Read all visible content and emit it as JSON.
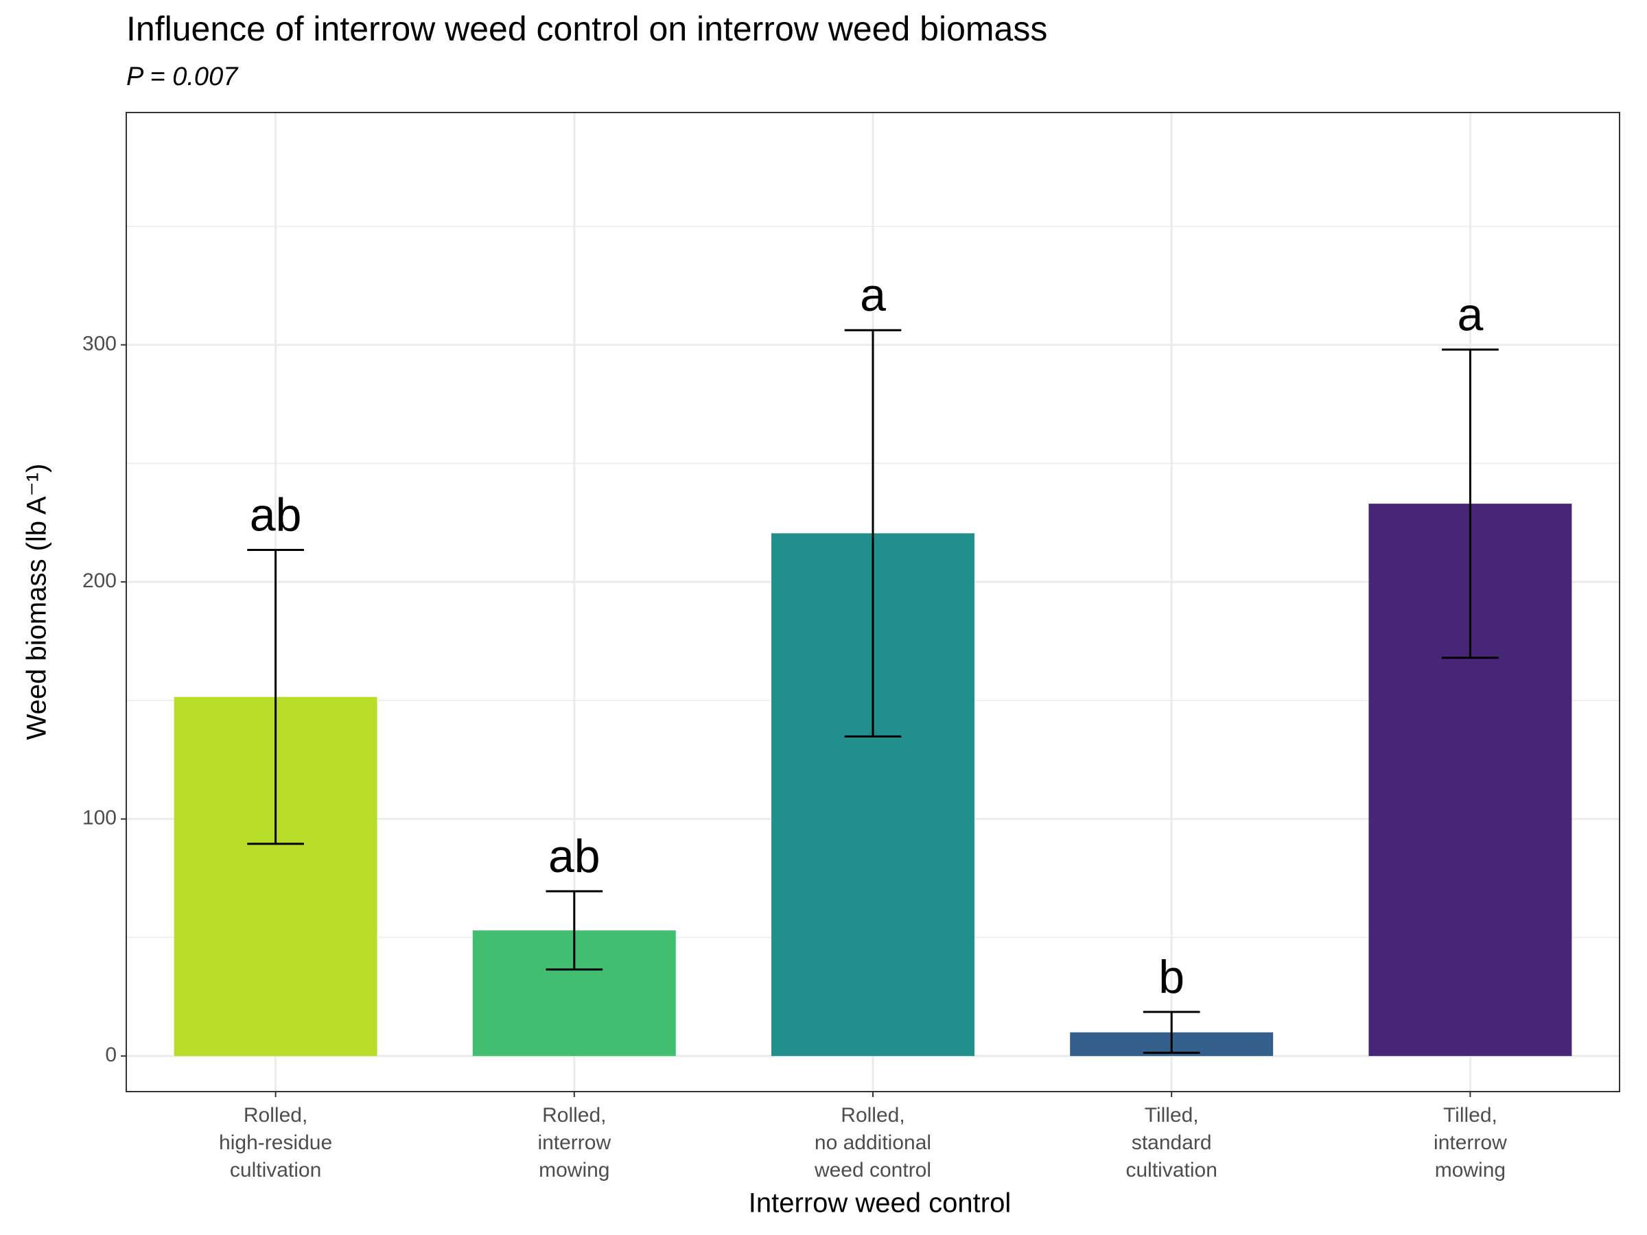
{
  "chart_data": {
    "type": "bar",
    "title": "Influence of interrow weed control on interrow weed biomass",
    "subtitle": "P = 0.007",
    "x_label": "Interrow weed control",
    "y_label": "Weed biomass (lb A⁻¹)",
    "categories": [
      "Rolled,\nhigh-residue\ncultivation",
      "Rolled,\ninterrow\nmowing",
      "Rolled,\nno additional\nweed control",
      "Tilled,\nstandard\ncultivation",
      "Tilled,\ninterrow\nmowing"
    ],
    "values": [
      151.5,
      53,
      220.5,
      10,
      233
    ],
    "errors": [
      62,
      16.5,
      85.7,
      8.6,
      65
    ],
    "colors": [
      "#b8de29",
      "#43bf71",
      "#21908d",
      "#35608d",
      "#482677"
    ],
    "annotations": [
      "ab",
      "ab",
      "a",
      "b",
      "a"
    ],
    "ylim": [
      -15,
      398
    ],
    "yticks": [
      0,
      100,
      200,
      300
    ],
    "grid": true
  }
}
